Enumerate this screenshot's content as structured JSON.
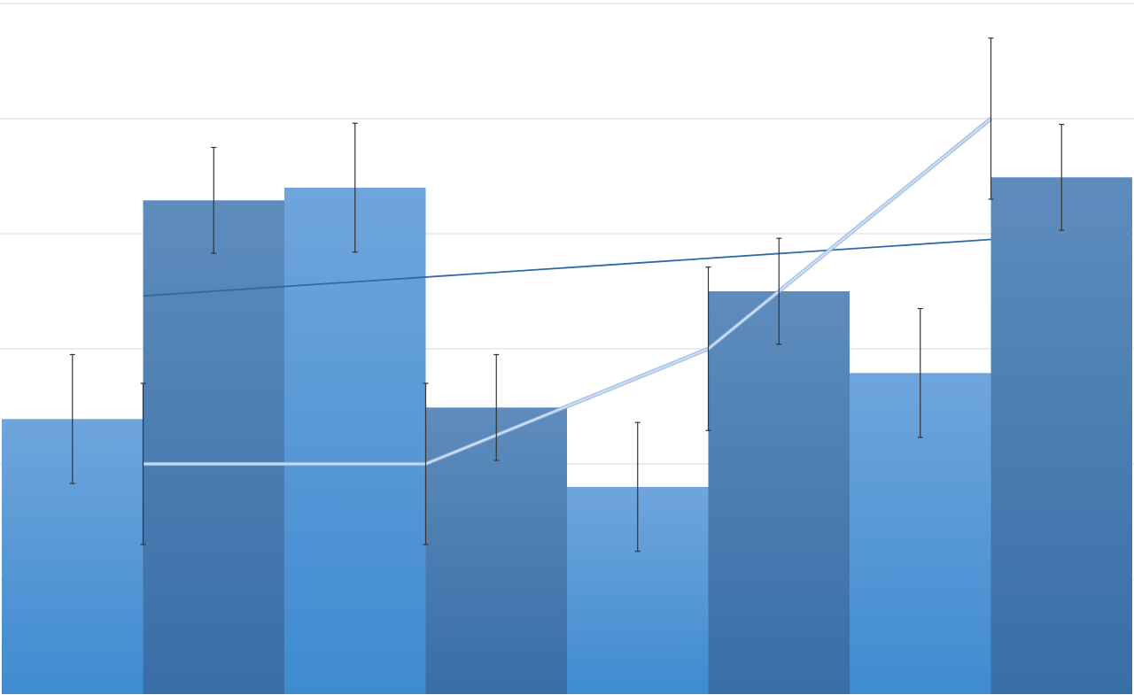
{
  "chart_data": {
    "type": "bar",
    "title": "",
    "xlabel": "",
    "ylabel": "",
    "ylim": [
      0,
      6
    ],
    "grid": true,
    "grid_step": 1,
    "legend": "none",
    "bars": {
      "values": [
        2.39,
        4.29,
        4.4,
        2.49,
        1.8,
        3.5,
        2.79,
        4.49
      ],
      "errors": [
        0.56,
        0.46,
        0.56,
        0.46,
        0.56,
        0.46,
        0.56,
        0.46
      ],
      "colors_light": [
        "#6fa5dd",
        "#3f8bd0"
      ],
      "colors_dark": [
        "#5e8cbd",
        "#386ea6"
      ]
    },
    "line_series": {
      "type": "line",
      "x_positions": [
        1,
        3,
        5,
        7
      ],
      "values": [
        2,
        2,
        3,
        5
      ],
      "errors": [
        0.7,
        0.7,
        0.71,
        0.7
      ],
      "color": "#a9c6ea"
    },
    "trendline": {
      "type": "linear",
      "start": [
        1,
        3.46
      ],
      "end": [
        7,
        3.95
      ],
      "color": "#2e6aa6"
    },
    "gridline_color": "#d9d9d9",
    "errorbar_color": "#333333"
  }
}
